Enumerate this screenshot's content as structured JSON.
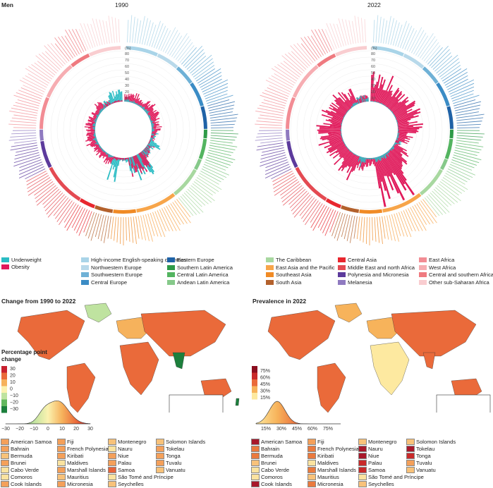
{
  "panel_label": "Men",
  "year_left": "1990",
  "year_right": "2022",
  "percent_unit": "(%)",
  "ring_ticks": [
    "80",
    "70",
    "60",
    "50",
    "40",
    "30",
    "20",
    "10"
  ],
  "legend_indicator": [
    {
      "label": "Underweight",
      "color": "#2bbcc4"
    },
    {
      "label": "Obesity",
      "color": "#e0195a"
    }
  ],
  "regions": [
    {
      "label": "High-income English-speaking countries",
      "color": "#a9d4e8"
    },
    {
      "label": "Northwestern Europe",
      "color": "#b8d9ea"
    },
    {
      "label": "Southwestern Europe",
      "color": "#6fb1d6"
    },
    {
      "label": "Central Europe",
      "color": "#3b8cc5"
    },
    {
      "label": "Eastern Europe",
      "color": "#1f62a6"
    },
    {
      "label": "Southern Latin America",
      "color": "#2e9a48"
    },
    {
      "label": "Central Latin America",
      "color": "#53b460"
    },
    {
      "label": "Andean Latin America",
      "color": "#86c98a"
    },
    {
      "label": "The Caribbean",
      "color": "#a8d8a0"
    },
    {
      "label": "East Asia and the Pacific",
      "color": "#f7a54a"
    },
    {
      "label": "Southeast Asia",
      "color": "#f08a25"
    },
    {
      "label": "South Asia",
      "color": "#b3612c"
    },
    {
      "label": "Central Asia",
      "color": "#e8262e"
    },
    {
      "label": "Middle East and north Africa",
      "color": "#e44a52"
    },
    {
      "label": "Polynesia and Micronesia",
      "color": "#5c3a9c"
    },
    {
      "label": "Melanesia",
      "color": "#8f7ac0"
    },
    {
      "label": "East Africa",
      "color": "#f28c94"
    },
    {
      "label": "West Africa",
      "color": "#f6adb2"
    },
    {
      "label": "Central and southern Africa",
      "color": "#ef7a80"
    },
    {
      "label": "Other sub-Saharan Africa",
      "color": "#f9cdd0"
    }
  ],
  "map_left_title": "Change from 1990 to 2022",
  "map_right_title": "Prevalence in 2022",
  "change_legend": {
    "title_line1": "Percentage point",
    "title_line2": "change",
    "ticks": [
      "30",
      "20",
      "10",
      "0",
      "−10",
      "−20",
      "−30"
    ],
    "colors": [
      "#c7202e",
      "#ea6a3a",
      "#f6b25c",
      "#fbf2b0",
      "#bfe3a0",
      "#63b85f",
      "#1c7f3c"
    ],
    "density_axis": [
      "−30",
      "−20",
      "−10",
      "0",
      "10",
      "20",
      "30"
    ]
  },
  "prevalence_legend": {
    "ticks": [
      "75%",
      "60%",
      "45%",
      "30%",
      "15%"
    ],
    "colors": [
      "#8b0e1f",
      "#c92a2a",
      "#ea6a3a",
      "#f7b35b",
      "#fde9a0"
    ],
    "density_axis": [
      "15%",
      "30%",
      "45%",
      "60%",
      "75%"
    ]
  },
  "small_countries": [
    "American Samoa",
    "Bahrain",
    "Bermuda",
    "Brunei",
    "Cabo Verde",
    "Comoros",
    "Cook Islands",
    "Fiji",
    "French Polynesia",
    "Kiribati",
    "Maldives",
    "Marshall Islands",
    "Mauritius",
    "Micronesia",
    "Montenegro",
    "Nauru",
    "Niue",
    "Palau",
    "Samoa",
    "São Tomé and Príncipe",
    "Seychelles",
    "Solomon Islands",
    "Tokelau",
    "Tonga",
    "Tuvalu",
    "Vanuatu"
  ],
  "small_colors_change": [
    "#f4a05a",
    "#f4a05a",
    "#f8c27a",
    "#f4a05a",
    "#fbe3a0",
    "#fbe3a0",
    "#f4a05a",
    "#f4a05a",
    "#f4a05a",
    "#f4a05a",
    "#fbe3a0",
    "#f4a05a",
    "#f8c27a",
    "#f4a05a",
    "#f8c27a",
    "#fbe3a0",
    "#f4a05a",
    "#f4a05a",
    "#e8643a",
    "#fbe3a0",
    "#f8c27a",
    "#f8c27a",
    "#f4a05a",
    "#f4a05a",
    "#f4a05a",
    "#f8c27a"
  ],
  "small_colors_prev": [
    "#a8182b",
    "#ea7a3e",
    "#ea7a3e",
    "#f8c27a",
    "#fbe3a0",
    "#fbe3a0",
    "#a8182b",
    "#f4a05a",
    "#ea7a3e",
    "#ea7a3e",
    "#fbe3a0",
    "#ea7a3e",
    "#f8c27a",
    "#ea7a3e",
    "#f8c27a",
    "#a8182b",
    "#a8182b",
    "#c92a2a",
    "#c92a2a",
    "#fbe3a0",
    "#f8c27a",
    "#f8c27a",
    "#a8182b",
    "#c92a2a",
    "#f4a05a",
    "#f8c27a"
  ],
  "chart_data": [
    {
      "type": "bar",
      "title": "1990",
      "layout": "circular",
      "ylabel": "(%)",
      "ylim": [
        0,
        80
      ],
      "series": [
        {
          "name": "Underweight",
          "values_by_sector": [
            3,
            2,
            4,
            2,
            3,
            3,
            8,
            14,
            8,
            25,
            5,
            30
          ]
        },
        {
          "name": "Obesity",
          "values_by_sector": [
            12,
            10,
            14,
            13,
            12,
            12,
            6,
            2,
            10,
            22,
            3,
            4
          ]
        }
      ]
    },
    {
      "type": "bar",
      "title": "2022",
      "layout": "circular",
      "ylabel": "(%)",
      "ylim": [
        0,
        80
      ],
      "series": [
        {
          "name": "Underweight",
          "values_by_sector": [
            1,
            1,
            1,
            1,
            1,
            1,
            3,
            8,
            3,
            5,
            2,
            10
          ]
        },
        {
          "name": "Obesity",
          "values_by_sector": [
            35,
            25,
            28,
            30,
            28,
            25,
            20,
            8,
            25,
            55,
            10,
            15
          ]
        }
      ]
    }
  ]
}
